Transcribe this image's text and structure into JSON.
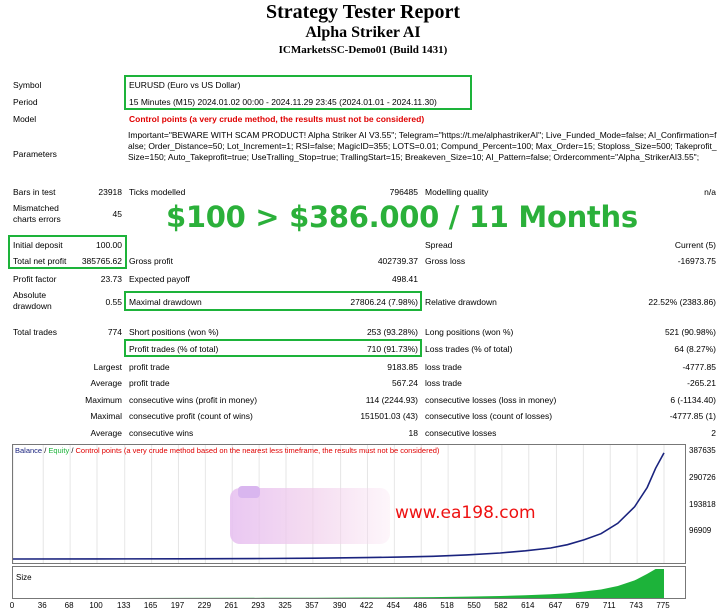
{
  "header": {
    "title": "Strategy Tester Report",
    "expert": "Alpha Striker AI",
    "server": "ICMarketsSC-Demo01 (Build 1431)"
  },
  "settings": {
    "symbol_label": "Symbol",
    "symbol_value": "EURUSD (Euro vs US Dollar)",
    "period_label": "Period",
    "period_value": "15 Minutes (M15) 2024.01.02 00:00 - 2024.11.29 23:45 (2024.01.01 - 2024.11.30)",
    "model_label": "Model",
    "model_value": "Control points (a very crude method, the results must not be considered)",
    "parameters_label": "Parameters",
    "parameters_value": "Important=\"BEWARE WITH SCAM PRODUCT! Alpha Striker AI V3.55\"; Telegram=\"https://t.me/alphastrikerAI\"; Live_Funded_Mode=false; AI_Confirmation=false; Order_Distance=50; Lot_Increment=1; RSI=false; MagicID=355; LOTS=0.01; Compund_Percent=100; Max_Order=15; Stoploss_Size=500; Takeprofit_Size=150; Auto_Takeprofit=true; UseTralling_Stop=true; TrallingStart=15; Breakeven_Size=10; AI_Pattern=false; Ordercomment=\"Alpha_StrikerAI3.55\";"
  },
  "overlay": {
    "headline": "$100 > $386.000 / 11 Months",
    "watermark": "www.ea198.com"
  },
  "stats": {
    "bars_label": "Bars in test",
    "bars_value": "23918",
    "ticks_label": "Ticks modelled",
    "ticks_value": "796485",
    "quality_label": "Modelling quality",
    "quality_value": "n/a",
    "mismatched_label": "Mismatched charts errors",
    "mismatched_value": "45",
    "deposit_label": "Initial deposit",
    "deposit_value": "100.00",
    "spread_label": "Spread",
    "spread_value": "Current (5)",
    "netprofit_label": "Total net profit",
    "netprofit_value": "385765.62",
    "grossprofit_label": "Gross profit",
    "grossprofit_value": "402739.37",
    "grossloss_label": "Gross loss",
    "grossloss_value": "-16973.75",
    "pf_label": "Profit factor",
    "pf_value": "23.73",
    "payoff_label": "Expected payoff",
    "payoff_value": "498.41",
    "absdd_label": "Absolute drawdown",
    "absdd_value": "0.55",
    "maxdd_label": "Maximal drawdown",
    "maxdd_value": "27806.24 (7.98%)",
    "reldd_label": "Relative drawdown",
    "reldd_value": "22.52% (2383.86)",
    "trades_label": "Total trades",
    "trades_value": "774",
    "short_label": "Short positions (won %)",
    "short_value": "253 (93.28%)",
    "long_label": "Long positions (won %)",
    "long_value": "521 (90.98%)",
    "profit_trades_label": "Profit trades (% of total)",
    "profit_trades_value": "710 (91.73%)",
    "loss_trades_label": "Loss trades (% of total)",
    "loss_trades_value": "64 (8.27%)",
    "largest_label": "Largest",
    "largest_profit_label": "profit trade",
    "largest_profit_value": "9183.85",
    "largest_loss_label": "loss trade",
    "largest_loss_value": "-4777.85",
    "average_label": "Average",
    "average_profit_label": "profit trade",
    "average_profit_value": "567.24",
    "average_loss_label": "loss trade",
    "average_loss_value": "-265.21",
    "maximum_label": "Maximum",
    "max_wins_label": "consecutive wins (profit in money)",
    "max_wins_value": "114 (2244.93)",
    "max_losses_label": "consecutive losses (loss in money)",
    "max_losses_value": "6 (-1134.40)",
    "maximal_label": "Maximal",
    "mx_profit_label": "consecutive profit (count of wins)",
    "mx_profit_value": "151501.03 (43)",
    "mx_loss_label": "consecutive loss (count of losses)",
    "mx_loss_value": "-4777.85 (1)",
    "avg2_label": "Average",
    "avg_wins_label": "consecutive wins",
    "avg_wins_value": "18",
    "avg_losses_label": "consecutive losses",
    "avg_losses_value": "2"
  },
  "chart_data": {
    "type": "line",
    "legend": {
      "balance": "Balance",
      "sep1": " / ",
      "equity": "Equity",
      "sep2": " / ",
      "note": "Control points (a very crude method based on the nearest less timeframe, the results must not be considered)"
    },
    "balance_color": "#1a237e",
    "equity_color": "#1db33a",
    "yticks": [
      96909,
      193818,
      290726,
      387635
    ],
    "ytick_labels": [
      "96909",
      "193818",
      "290726",
      "387635"
    ],
    "xticks": [
      0,
      36,
      68,
      100,
      133,
      165,
      197,
      229,
      261,
      293,
      325,
      357,
      390,
      422,
      454,
      486,
      518,
      550,
      582,
      614,
      647,
      679,
      711,
      743,
      775
    ],
    "xlim": [
      0,
      800
    ],
    "ylim": [
      0,
      400000
    ],
    "x": [
      0,
      100,
      200,
      300,
      360,
      420,
      460,
      500,
      540,
      580,
      610,
      640,
      660,
      680,
      700,
      720,
      740,
      755,
      765,
      775
    ],
    "balance": [
      100,
      300,
      800,
      1800,
      3000,
      5000,
      7000,
      10000,
      15000,
      22000,
      30000,
      40000,
      52000,
      70000,
      92000,
      130000,
      190000,
      260000,
      330000,
      385765
    ],
    "volume_label": "Size"
  }
}
